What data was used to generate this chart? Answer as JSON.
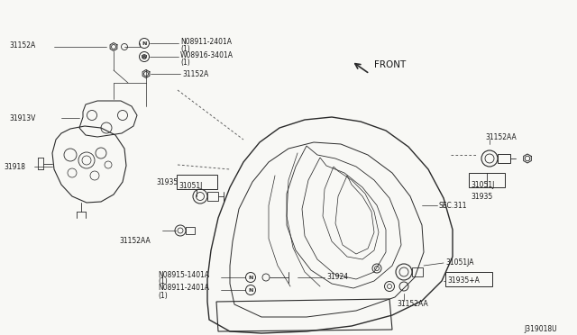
{
  "bg_color": "#f5f5f0",
  "line_color": "#2a2a2a",
  "text_color": "#1a1a1a",
  "diagram_id": "J319018U",
  "font_size": 5.5,
  "font_size_large": 7.5,
  "labels": {
    "front": "FRONT",
    "sec311": "SEC.311",
    "31152A_tl": "31152A",
    "N08911_2401A": "N08911-2401A",
    "N08911_2401A_1": "(1)",
    "W08916_3401A": "W08916-3401A",
    "W08916_3401A_1": "(1)",
    "31152A_mid": "31152A",
    "31913V": "31913V",
    "31918": "31918",
    "31935_l": "31935",
    "31051J_l": "31051J",
    "31152AA_l": "31152AA",
    "31152AA_r": "31152AA",
    "31051J_r": "31051J",
    "31935_r": "31935",
    "N08915_1401A": "N08915-1401A",
    "N08915_1401A_1": "(1)",
    "N08911_2401A_b": "N08911-2401A",
    "N08911_2401A_b1": "(1)",
    "31924": "31924",
    "31051JA": "31051JA",
    "31935A": "31935+A",
    "31152AA_b": "31152AA"
  }
}
